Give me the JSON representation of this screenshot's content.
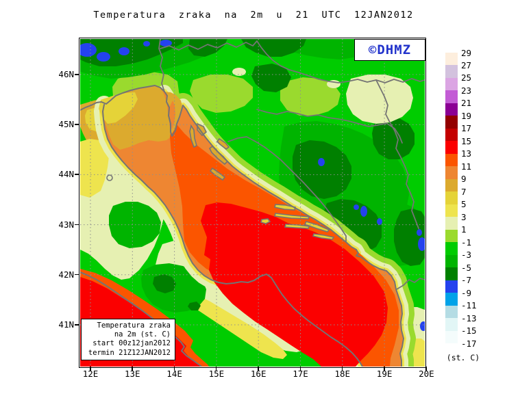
{
  "title": "Temperatura zraka na 2m u 21 UTC 12JAN2012",
  "watermark": "©DHMZ",
  "info_box": {
    "lines": [
      "Temperatura zraka",
      "na 2m (st. C)",
      "start 00z12jan2012",
      "termin 21Z12JAN2012"
    ]
  },
  "map": {
    "x_axis_labels": [
      "12E",
      "13E",
      "14E",
      "15E",
      "16E",
      "17E",
      "18E",
      "19E",
      "20E"
    ],
    "y_axis_labels": [
      "46N",
      "45N",
      "44N",
      "43N",
      "42N",
      "41N"
    ]
  },
  "legend": {
    "unit_label": "(st. C)",
    "tick_labels": [
      "29",
      "27",
      "25",
      "23",
      "21",
      "19",
      "17",
      "15",
      "13",
      "11",
      "9",
      "7",
      "5",
      "3",
      "1",
      "-1",
      "-3",
      "-5",
      "-7",
      "-9",
      "-11",
      "-13",
      "-15",
      "-17"
    ],
    "segment_colors": [
      "#fdeedd",
      "#d3c2de",
      "#dba5e3",
      "#c35cd5",
      "#8b0094",
      "#930000",
      "#c40000",
      "#fb0000",
      "#fb5500",
      "#ee8632",
      "#dcaa2e",
      "#e5d338",
      "#eee44e",
      "#e6f0b2",
      "#9ada2e",
      "#00cc00",
      "#00b400",
      "#008000",
      "#2442ee",
      "#00a2e8",
      "#b4dce4",
      "#e2f6f6",
      "#f4fcfc"
    ]
  },
  "colors": {
    "watermark_blue": "#2233cc",
    "coastline": "#747474",
    "grid": "#8f8f8f",
    "frame": "#000000"
  }
}
